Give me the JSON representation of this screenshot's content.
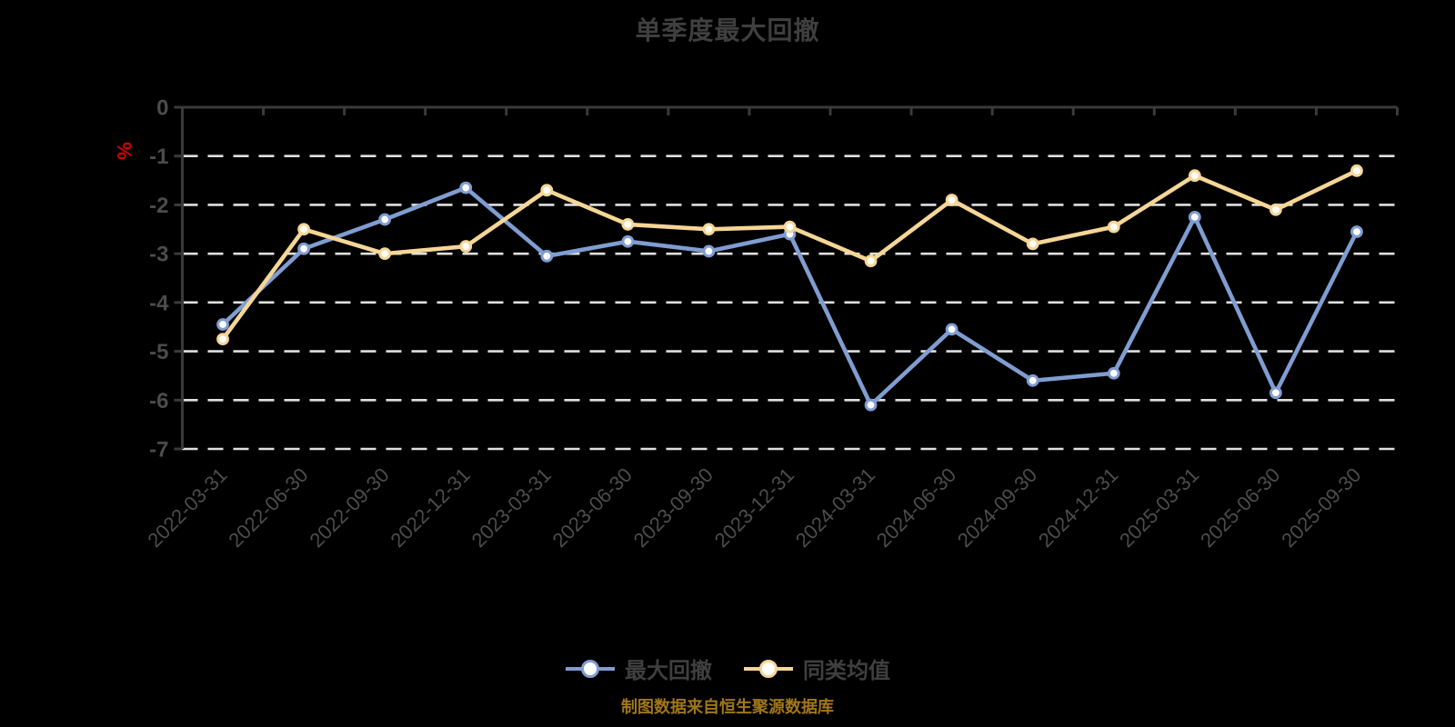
{
  "title": "单季度最大回撤",
  "footnote": "制图数据来自恒生聚源数据库",
  "y_axis": {
    "unit": "%",
    "unit_color": "#d40000",
    "tick_labels": [
      "0",
      "-1",
      "-2",
      "-3",
      "-4",
      "-5",
      "-6",
      "-7"
    ]
  },
  "legend": [
    {
      "label": "最大回撤",
      "color": "#7f9dd1"
    },
    {
      "label": "同类均值",
      "color": "#f6d696"
    }
  ],
  "colors": {
    "background": "#000000",
    "axis": "#3a3a3a",
    "gridline": "#e0e0e0",
    "tick_text": "#4c4c4c",
    "marker_fill": "#ffffff"
  },
  "chart_data": {
    "type": "line",
    "title": "单季度最大回撤",
    "ylabel": "%",
    "ylim": [
      -7,
      0
    ],
    "grid": "horizontal dashed, solid top axis, legend bottom center",
    "x": [
      "2022-03-31",
      "2022-06-30",
      "2022-09-30",
      "2022-12-31",
      "2023-03-31",
      "2023-06-30",
      "2023-09-30",
      "2023-12-31",
      "2024-03-31",
      "2024-06-30",
      "2024-09-30",
      "2024-12-31",
      "2025-03-31",
      "2025-06-30",
      "2025-09-30"
    ],
    "series": [
      {
        "name": "最大回撤",
        "color": "#7f9dd1",
        "values": [
          -4.45,
          -2.9,
          -2.3,
          -1.65,
          -3.05,
          -2.75,
          -2.95,
          -2.6,
          -6.1,
          -4.55,
          -5.6,
          -5.45,
          -2.25,
          -5.85,
          -2.55
        ]
      },
      {
        "name": "同类均值",
        "color": "#f6d696",
        "values": [
          -4.75,
          -2.5,
          -3.0,
          -2.85,
          -1.7,
          -2.4,
          -2.5,
          -2.45,
          -3.15,
          -1.9,
          -2.8,
          -2.45,
          -1.4,
          -2.1,
          -1.3
        ]
      }
    ]
  }
}
